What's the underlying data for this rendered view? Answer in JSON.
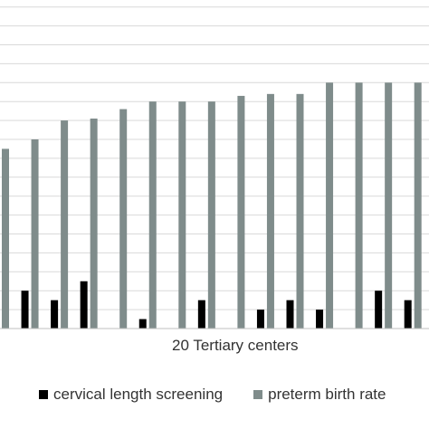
{
  "chart_data": {
    "type": "bar",
    "title": "",
    "xlabel": "20 Tertiary centers",
    "ylabel": "",
    "ylim": [
      0,
      17
    ],
    "grid": true,
    "legend": "bottom",
    "categories": [
      "",
      "",
      "",
      "",
      "",
      "",
      "",
      "",
      "",
      "",
      "",
      "",
      "",
      "",
      ""
    ],
    "series": [
      {
        "name": "cervical length screening",
        "color": "#000000",
        "values": [
          0,
          2,
          1.5,
          2.5,
          0,
          0.5,
          0,
          1.5,
          0,
          1,
          1.5,
          1,
          0,
          2,
          1.5
        ]
      },
      {
        "name": "preterm birth rate",
        "color": "#7f8c8b",
        "values": [
          9.5,
          10,
          11,
          11.1,
          11.6,
          12,
          12,
          12,
          12.3,
          12.4,
          12.4,
          13,
          13,
          13,
          13
        ]
      }
    ]
  }
}
